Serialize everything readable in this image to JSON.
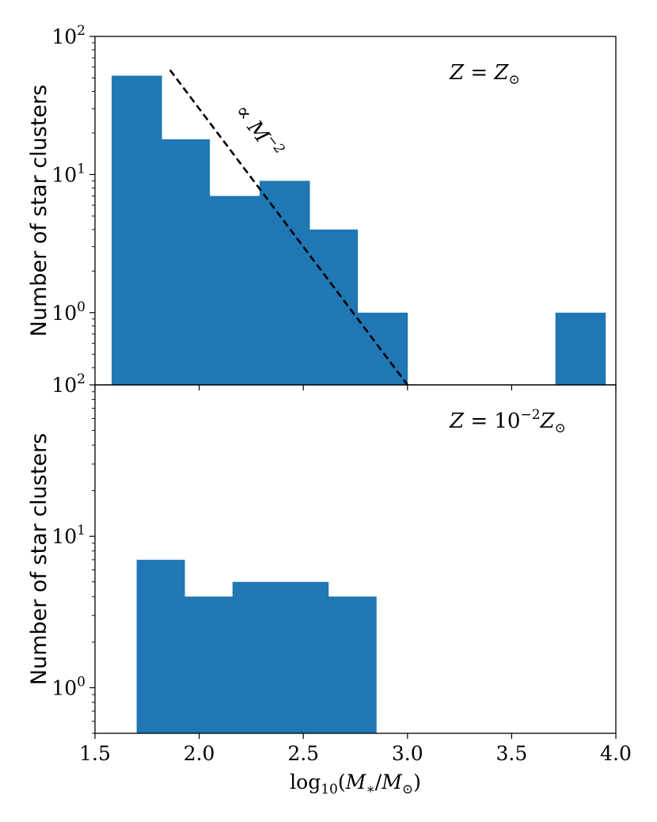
{
  "chart_data": [
    {
      "type": "bar",
      "panel": "top",
      "title": "",
      "annotation": "Z = Z_⊙",
      "xlabel": "log10(M*/M⊙)",
      "ylabel": "Number of star clusters",
      "yscale": "log",
      "xlim": [
        1.5,
        4.0
      ],
      "ylim": [
        0.3,
        100
      ],
      "ytick_labels": [
        "10^0",
        "10^1",
        "10^2"
      ],
      "ytick_values": [
        1,
        10,
        100
      ],
      "bins": [
        {
          "x0": 1.58,
          "x1": 1.82,
          "count": 52
        },
        {
          "x0": 1.82,
          "x1": 2.05,
          "count": 18
        },
        {
          "x0": 2.05,
          "x1": 2.29,
          "count": 7
        },
        {
          "x0": 2.29,
          "x1": 2.53,
          "count": 9
        },
        {
          "x0": 2.53,
          "x1": 2.76,
          "count": 4
        },
        {
          "x0": 2.76,
          "x1": 3.0,
          "count": 1
        },
        {
          "x0": 3.71,
          "x1": 3.95,
          "count": 1
        }
      ],
      "powerlaw_line": {
        "label": "∝ M^-2",
        "x_start": 1.86,
        "x_end": 3.0,
        "y_at_end": 0.3,
        "slope": -2
      }
    },
    {
      "type": "bar",
      "panel": "bottom",
      "annotation": "Z = 10^-2 Z_⊙",
      "xlabel": "log10(M*/M⊙)",
      "ylabel": "Number of star clusters",
      "yscale": "log",
      "xlim": [
        1.5,
        4.0
      ],
      "ylim": [
        0.5,
        100
      ],
      "ytick_labels": [
        "10^0",
        "10^1",
        "10^2"
      ],
      "ytick_values": [
        1,
        10,
        100
      ],
      "xticks": [
        "1.5",
        "2.0",
        "2.5",
        "3.0",
        "3.5",
        "4.0"
      ],
      "xtick_values": [
        1.5,
        2.0,
        2.5,
        3.0,
        3.5,
        4.0
      ],
      "bins": [
        {
          "x0": 1.7,
          "x1": 1.93,
          "count": 7
        },
        {
          "x0": 1.93,
          "x1": 2.16,
          "count": 4
        },
        {
          "x0": 2.16,
          "x1": 2.39,
          "count": 5
        },
        {
          "x0": 2.39,
          "x1": 2.62,
          "count": 5
        },
        {
          "x0": 2.62,
          "x1": 2.85,
          "count": 4
        }
      ]
    }
  ]
}
